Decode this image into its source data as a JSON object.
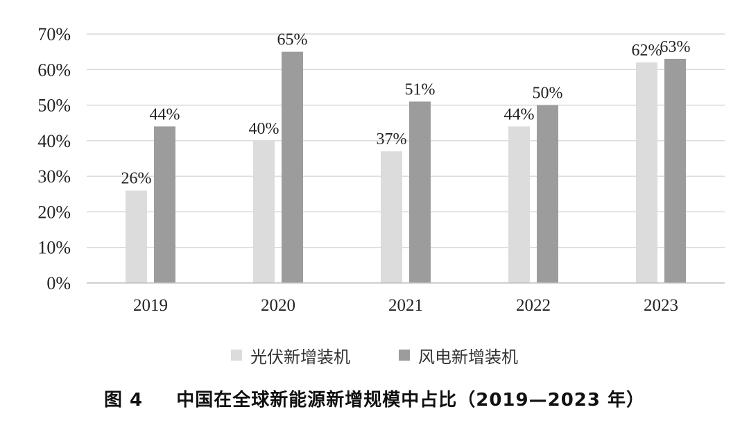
{
  "chart_data": {
    "type": "bar",
    "categories": [
      "2019",
      "2020",
      "2021",
      "2022",
      "2023"
    ],
    "series": [
      {
        "name": "光伏新增装机",
        "values": [
          26,
          40,
          37,
          44,
          62
        ],
        "labels": [
          "26%",
          "40%",
          "37%",
          "44%",
          "62%"
        ],
        "color": "#dcdcdc"
      },
      {
        "name": "风电新增装机",
        "values": [
          44,
          65,
          51,
          50,
          63
        ],
        "labels": [
          "44%",
          "65%",
          "51%",
          "50%",
          "63%"
        ],
        "color": "#9c9c9c"
      }
    ],
    "ylim": [
      0,
      70
    ],
    "yticks": [
      0,
      10,
      20,
      30,
      40,
      50,
      60,
      70
    ],
    "ytick_labels": [
      "0%",
      "10%",
      "20%",
      "30%",
      "40%",
      "50%",
      "60%",
      "70%"
    ],
    "grid": true,
    "legend_position": "bottom"
  },
  "caption": {
    "label": "图 4",
    "text": "中国在全球新能源新增规模中占比（2019—2023 年）"
  }
}
